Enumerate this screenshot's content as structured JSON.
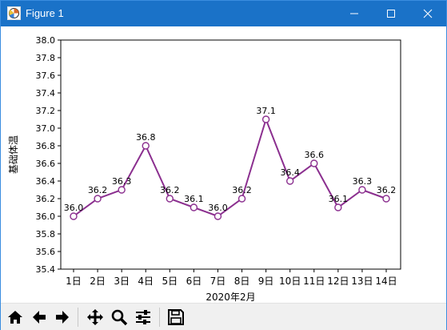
{
  "window": {
    "title": "Figure 1",
    "icons": [
      "figure-app-icon",
      "minimize-icon",
      "maximize-icon",
      "close-icon"
    ]
  },
  "toolbar": {
    "buttons": [
      "home-icon",
      "back-arrow-icon",
      "forward-arrow-icon",
      "pan-icon",
      "zoom-icon",
      "configure-subplots-icon",
      "save-icon"
    ]
  },
  "chart_data": {
    "type": "line",
    "categories": [
      "1日",
      "2日",
      "3日",
      "4日",
      "5日",
      "6日",
      "7日",
      "8日",
      "9日",
      "10日",
      "11日",
      "12日",
      "13日",
      "14日"
    ],
    "values": [
      36.0,
      36.2,
      36.3,
      36.8,
      36.2,
      36.1,
      36.0,
      36.2,
      37.1,
      36.4,
      36.6,
      36.1,
      36.3,
      36.2
    ],
    "data_labels": [
      "36.0",
      "36.2",
      "36.3",
      "36.8",
      "36.2",
      "36.1",
      "36.0",
      "36.2",
      "37.1",
      "36.4",
      "36.6",
      "36.1",
      "36.3",
      "36.2"
    ],
    "xlabel": "2020年2月",
    "ylabel": "基础体温",
    "ylim": [
      35.4,
      38.0
    ],
    "yticks": [
      "35.4",
      "35.6",
      "35.8",
      "36.0",
      "36.2",
      "36.4",
      "36.6",
      "36.8",
      "37.0",
      "37.2",
      "37.4",
      "37.6",
      "37.8",
      "38.0"
    ],
    "line_color": "#8b2f8f",
    "marker": "open-circle",
    "grid": false
  }
}
